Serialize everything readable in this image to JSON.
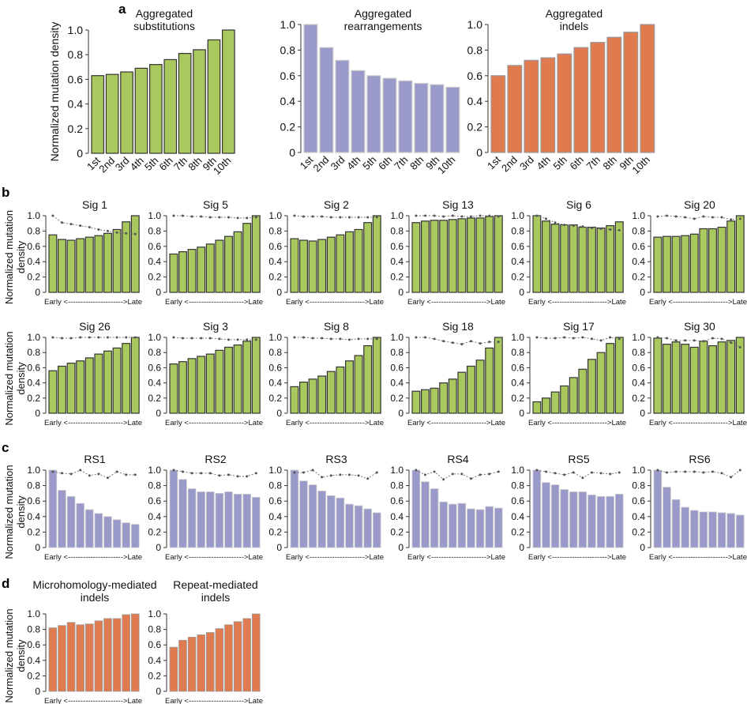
{
  "colors": {
    "substitutions": "#a9c95e",
    "rearrangements": "#9a9aca",
    "indels": "#e07a4f",
    "line": "#777777"
  },
  "y_label": "Normalized mutation density",
  "y_label_small": [
    "Normalized mutation",
    "density"
  ],
  "early_late": "Early <---------------------->Late",
  "chart_data": [
    {
      "panel": "a",
      "type": "bar",
      "title": [
        "Aggregated",
        "substitutions"
      ],
      "categories": [
        "1st",
        "2nd",
        "3rd",
        "4th",
        "5th",
        "6th",
        "7th",
        "8th",
        "9th",
        "10th"
      ],
      "values": [
        0.63,
        0.64,
        0.66,
        0.69,
        0.72,
        0.76,
        0.81,
        0.84,
        0.92,
        1.0
      ],
      "ylim": [
        0,
        1
      ],
      "yticks": [
        "0",
        "0.2",
        "0.4",
        "0.6",
        "0.8",
        "1.0"
      ],
      "color": "substitutions",
      "ylabel": "Normalized mutation density"
    },
    {
      "panel": "a",
      "type": "bar",
      "title": [
        "Aggregated",
        "rearrangements"
      ],
      "categories": [
        "1st",
        "2nd",
        "3rd",
        "4th",
        "5th",
        "6th",
        "7th",
        "8th",
        "9th",
        "10th"
      ],
      "values": [
        1.0,
        0.82,
        0.72,
        0.64,
        0.6,
        0.58,
        0.56,
        0.54,
        0.53,
        0.51
      ],
      "ylim": [
        0,
        1
      ],
      "yticks": [
        "0",
        "0.2",
        "0.4",
        "0.6",
        "0.8",
        "1.0"
      ],
      "color": "rearrangements"
    },
    {
      "panel": "a",
      "type": "bar",
      "title": [
        "Aggregated",
        "indels"
      ],
      "categories": [
        "1st",
        "2nd",
        "3rd",
        "4th",
        "5th",
        "6th",
        "7th",
        "8th",
        "9th",
        "10th"
      ],
      "values": [
        0.6,
        0.68,
        0.72,
        0.74,
        0.77,
        0.82,
        0.86,
        0.9,
        0.94,
        1.0
      ],
      "ylim": [
        0,
        1
      ],
      "yticks": [
        "0",
        "0.2",
        "0.4",
        "0.6",
        "0.8",
        "1.0"
      ],
      "color": "indels"
    },
    {
      "panel": "b",
      "type": "bar",
      "title": [
        "Sig 1"
      ],
      "values": [
        0.75,
        0.69,
        0.68,
        0.7,
        0.72,
        0.74,
        0.77,
        0.82,
        0.92,
        1.0
      ],
      "line": [
        1.0,
        0.91,
        0.89,
        0.87,
        0.85,
        0.82,
        0.8,
        0.78,
        0.77,
        0.76
      ],
      "color": "substitutions"
    },
    {
      "panel": "b",
      "type": "bar",
      "title": [
        "Sig 5"
      ],
      "values": [
        0.5,
        0.53,
        0.56,
        0.59,
        0.63,
        0.68,
        0.73,
        0.79,
        0.9,
        1.0
      ],
      "line": [
        1.0,
        1.0,
        0.99,
        0.99,
        0.98,
        0.98,
        0.98,
        0.97,
        0.97,
        0.98
      ],
      "color": "substitutions"
    },
    {
      "panel": "b",
      "type": "bar",
      "title": [
        "Sig 2"
      ],
      "values": [
        0.7,
        0.68,
        0.67,
        0.69,
        0.72,
        0.75,
        0.79,
        0.82,
        0.91,
        1.0
      ],
      "line": [
        1.0,
        0.99,
        0.99,
        0.99,
        0.98,
        0.98,
        0.98,
        0.98,
        0.98,
        0.98
      ],
      "color": "substitutions"
    },
    {
      "panel": "b",
      "type": "bar",
      "title": [
        "Sig 13"
      ],
      "values": [
        0.91,
        0.93,
        0.94,
        0.94,
        0.95,
        0.96,
        0.97,
        0.97,
        0.99,
        1.0
      ],
      "line": [
        1.0,
        1.0,
        1.0,
        0.99,
        1.0,
        0.99,
        0.99,
        1.0,
        1.0,
        0.99
      ],
      "color": "substitutions"
    },
    {
      "panel": "b",
      "type": "bar",
      "title": [
        "Sig 6"
      ],
      "values": [
        1.0,
        0.93,
        0.89,
        0.88,
        0.88,
        0.85,
        0.85,
        0.84,
        0.87,
        0.92
      ],
      "line": [
        1.0,
        0.96,
        0.91,
        0.88,
        0.87,
        0.86,
        0.84,
        0.83,
        0.82,
        0.81
      ],
      "color": "substitutions"
    },
    {
      "panel": "b",
      "type": "bar",
      "title": [
        "Sig 20"
      ],
      "values": [
        0.72,
        0.73,
        0.73,
        0.74,
        0.76,
        0.83,
        0.83,
        0.85,
        0.93,
        1.0
      ],
      "line": [
        0.99,
        1.0,
        0.99,
        0.98,
        0.96,
        0.99,
        0.98,
        0.98,
        0.95,
        0.96
      ],
      "color": "substitutions"
    },
    {
      "panel": "b",
      "type": "bar",
      "title": [
        "Sig 26"
      ],
      "values": [
        0.56,
        0.62,
        0.66,
        0.69,
        0.73,
        0.78,
        0.82,
        0.86,
        0.92,
        1.0
      ],
      "line": [
        1.0,
        0.99,
        0.99,
        1.0,
        1.0,
        1.0,
        1.0,
        1.0,
        1.0,
        1.0
      ],
      "color": "substitutions"
    },
    {
      "panel": "b",
      "type": "bar",
      "title": [
        "Sig 3"
      ],
      "values": [
        0.65,
        0.68,
        0.72,
        0.75,
        0.78,
        0.83,
        0.87,
        0.9,
        0.95,
        1.0
      ],
      "line": [
        1.0,
        0.99,
        0.99,
        0.99,
        0.99,
        0.98,
        0.97,
        0.97,
        0.97,
        0.97
      ],
      "color": "substitutions"
    },
    {
      "panel": "b",
      "type": "bar",
      "title": [
        "Sig 8"
      ],
      "values": [
        0.35,
        0.41,
        0.45,
        0.49,
        0.55,
        0.61,
        0.69,
        0.76,
        0.89,
        1.0
      ],
      "line": [
        1.0,
        1.0,
        0.99,
        0.99,
        0.98,
        0.98,
        0.97,
        0.98,
        0.98,
        0.98
      ],
      "color": "substitutions"
    },
    {
      "panel": "b",
      "type": "bar",
      "title": [
        "Sig 18"
      ],
      "values": [
        0.29,
        0.31,
        0.33,
        0.4,
        0.45,
        0.54,
        0.62,
        0.7,
        0.86,
        1.0
      ],
      "line": [
        1.0,
        1.0,
        0.98,
        0.95,
        0.93,
        0.91,
        0.95,
        0.92,
        0.94,
        0.94
      ],
      "color": "substitutions"
    },
    {
      "panel": "b",
      "type": "bar",
      "title": [
        "Sig 17"
      ],
      "values": [
        0.15,
        0.2,
        0.28,
        0.36,
        0.47,
        0.58,
        0.71,
        0.8,
        0.92,
        1.0
      ],
      "line": [
        1.0,
        0.99,
        0.99,
        1.0,
        0.99,
        1.0,
        0.98,
        0.96,
        1.0,
        0.98
      ],
      "color": "substitutions"
    },
    {
      "panel": "b",
      "type": "bar",
      "title": [
        "Sig 30"
      ],
      "values": [
        0.99,
        0.91,
        0.94,
        0.91,
        0.87,
        0.95,
        0.89,
        0.94,
        0.96,
        1.0
      ],
      "line": [
        1.0,
        0.99,
        0.96,
        0.96,
        0.96,
        0.95,
        0.99,
        0.98,
        0.93,
        0.87
      ],
      "color": "substitutions"
    },
    {
      "panel": "c",
      "type": "bar",
      "title": [
        "RS1"
      ],
      "values": [
        1.0,
        0.74,
        0.66,
        0.57,
        0.49,
        0.44,
        0.4,
        0.36,
        0.32,
        0.3
      ],
      "line": [
        0.98,
        0.96,
        0.95,
        1.0,
        0.93,
        0.95,
        0.9,
        0.98,
        0.94,
        0.94
      ],
      "color": "rearrangements"
    },
    {
      "panel": "c",
      "type": "bar",
      "title": [
        "RS2"
      ],
      "values": [
        1.0,
        0.88,
        0.76,
        0.72,
        0.72,
        0.7,
        0.72,
        0.69,
        0.69,
        0.65
      ],
      "line": [
        1.0,
        0.98,
        0.96,
        0.96,
        0.96,
        0.93,
        0.94,
        0.92,
        0.92,
        0.96
      ],
      "color": "rearrangements"
    },
    {
      "panel": "c",
      "type": "bar",
      "title": [
        "RS3"
      ],
      "values": [
        1.0,
        0.86,
        0.81,
        0.73,
        0.67,
        0.64,
        0.56,
        0.54,
        0.5,
        0.45
      ],
      "line": [
        0.97,
        0.97,
        1.0,
        0.91,
        0.93,
        0.94,
        0.94,
        0.93,
        0.89,
        0.97
      ],
      "color": "rearrangements"
    },
    {
      "panel": "c",
      "type": "bar",
      "title": [
        "RS4"
      ],
      "values": [
        1.0,
        0.85,
        0.76,
        0.59,
        0.56,
        0.57,
        0.5,
        0.49,
        0.53,
        0.51
      ],
      "line": [
        1.0,
        0.94,
        0.98,
        0.88,
        0.95,
        0.95,
        0.89,
        0.94,
        0.95,
        0.98
      ],
      "color": "rearrangements"
    },
    {
      "panel": "c",
      "type": "bar",
      "title": [
        "RS5"
      ],
      "values": [
        1.0,
        0.84,
        0.81,
        0.75,
        0.72,
        0.72,
        0.68,
        0.66,
        0.66,
        0.69
      ],
      "line": [
        1.0,
        0.98,
        0.96,
        0.94,
        0.97,
        0.9,
        0.97,
        0.96,
        0.95,
        0.97
      ],
      "color": "rearrangements"
    },
    {
      "panel": "c",
      "type": "bar",
      "title": [
        "RS6"
      ],
      "values": [
        1.0,
        0.78,
        0.62,
        0.52,
        0.48,
        0.46,
        0.46,
        0.45,
        0.44,
        0.42
      ],
      "line": [
        1.0,
        0.97,
        0.98,
        0.98,
        0.98,
        0.97,
        0.98,
        0.96,
        0.91,
        1.0
      ],
      "color": "rearrangements"
    },
    {
      "panel": "d",
      "type": "bar",
      "title": [
        "Microhomology-mediated",
        "indels"
      ],
      "values": [
        0.82,
        0.85,
        0.89,
        0.86,
        0.87,
        0.91,
        0.94,
        0.94,
        0.99,
        1.0
      ],
      "color": "indels"
    },
    {
      "panel": "d",
      "type": "bar",
      "title": [
        "Repeat-mediated",
        "indels"
      ],
      "values": [
        0.57,
        0.66,
        0.7,
        0.73,
        0.76,
        0.81,
        0.86,
        0.9,
        0.94,
        1.0
      ],
      "color": "indels"
    }
  ],
  "panel_labels": [
    "a",
    "b",
    "c",
    "d"
  ],
  "small_yticks": [
    "0",
    "0.2",
    "0.4",
    "0.6",
    "0.8",
    "1.0"
  ]
}
